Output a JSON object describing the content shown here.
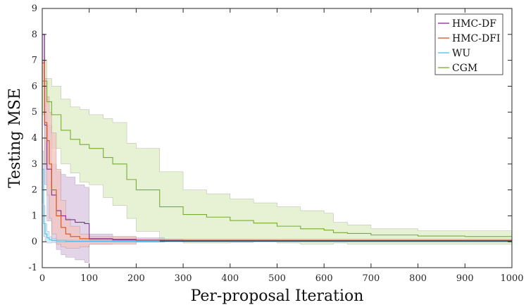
{
  "chart_data": {
    "type": "line",
    "title": "",
    "xlabel": "Per-proposal Iteration",
    "ylabel": "Testing MSE",
    "xlim": [
      0,
      1000
    ],
    "ylim": [
      -1,
      9
    ],
    "x_ticks": [
      0,
      100,
      200,
      300,
      400,
      500,
      600,
      700,
      800,
      900,
      1000
    ],
    "y_ticks": [
      -1,
      0,
      1,
      2,
      3,
      4,
      5,
      6,
      7,
      8,
      9
    ],
    "grid": false,
    "legend_position": "top-right",
    "series": [
      {
        "name": "CGM",
        "color": "#77ac30",
        "band_color": "#dfeec6",
        "x": [
          0,
          10,
          20,
          40,
          60,
          80,
          100,
          130,
          150,
          180,
          200,
          250,
          300,
          350,
          400,
          450,
          500,
          550,
          600,
          620,
          650,
          700,
          800,
          900,
          1000
        ],
        "mean": [
          6.2,
          5.4,
          4.9,
          4.3,
          3.95,
          3.75,
          3.6,
          3.25,
          3.0,
          2.4,
          2.0,
          1.35,
          1.05,
          0.95,
          0.82,
          0.72,
          0.6,
          0.5,
          0.45,
          0.35,
          0.32,
          0.26,
          0.22,
          0.2,
          0.2
        ],
        "upper": [
          7.0,
          6.3,
          6.0,
          5.5,
          5.2,
          5.1,
          4.9,
          4.75,
          4.6,
          3.8,
          3.6,
          2.7,
          2.0,
          1.85,
          1.65,
          1.5,
          1.35,
          1.2,
          1.1,
          0.75,
          0.65,
          0.5,
          0.42,
          0.42,
          0.35
        ],
        "lower": [
          4.9,
          4.2,
          3.6,
          3.0,
          2.65,
          2.3,
          2.2,
          1.7,
          1.4,
          0.9,
          0.4,
          0.0,
          -0.05,
          -0.05,
          -0.03,
          0.0,
          -0.05,
          -0.1,
          -0.1,
          -0.05,
          -0.1,
          -0.1,
          -0.1,
          -0.1,
          -0.05
        ]
      },
      {
        "name": "HMC-DF",
        "color": "#7e2f8e",
        "band_color": "#d9c6e2",
        "x": [
          0,
          5,
          10,
          20,
          30,
          40,
          50,
          70,
          90,
          100,
          150,
          200,
          260,
          300,
          500,
          1000
        ],
        "mean": [
          8.0,
          4.5,
          2.8,
          1.8,
          1.2,
          1.0,
          0.85,
          0.75,
          0.7,
          0.12,
          0.07,
          0.06,
          0.05,
          0.04,
          0.03,
          0.03
        ],
        "upper": [
          8.0,
          6.0,
          4.5,
          3.0,
          2.7,
          2.6,
          2.5,
          2.2,
          2.1,
          0.3,
          0.2,
          0.15,
          0.1,
          0.08,
          0.06,
          0.05
        ],
        "lower": [
          6.5,
          2.2,
          0.8,
          0.0,
          -0.3,
          -0.5,
          -0.6,
          -0.7,
          -0.8,
          -0.1,
          -0.05,
          -0.02,
          0.0,
          0.0,
          0.0,
          0.0
        ]
      },
      {
        "name": "HMC-DFI",
        "color": "#d95319",
        "band_color": "#f2c4bf",
        "x": [
          0,
          5,
          10,
          15,
          20,
          30,
          40,
          50,
          60,
          80,
          100,
          200,
          1000
        ],
        "mean": [
          6.9,
          4.6,
          3.9,
          3.0,
          2.0,
          1.0,
          0.55,
          0.3,
          0.2,
          0.12,
          0.1,
          0.05,
          0.03
        ],
        "upper": [
          7.0,
          6.3,
          5.6,
          5.0,
          4.2,
          2.8,
          1.6,
          0.9,
          0.6,
          0.3,
          0.2,
          0.1,
          0.05
        ],
        "lower": [
          6.0,
          3.0,
          1.8,
          0.9,
          0.3,
          -0.1,
          -0.2,
          -0.25,
          -0.25,
          -0.2,
          -0.1,
          0.0,
          0.0
        ]
      },
      {
        "name": "WU",
        "color": "#4dbeee",
        "band_color": "#c6e8f5",
        "x": [
          0,
          3,
          6,
          10,
          15,
          20,
          30,
          50,
          100,
          1000
        ],
        "mean": [
          2.8,
          0.7,
          0.3,
          0.15,
          0.08,
          0.05,
          0.03,
          0.02,
          0.02,
          0.02
        ],
        "upper": [
          3.5,
          1.4,
          0.7,
          0.4,
          0.2,
          0.12,
          0.08,
          0.06,
          0.05,
          0.04
        ],
        "lower": [
          1.5,
          0.2,
          0.0,
          -0.05,
          -0.05,
          -0.03,
          -0.02,
          0.0,
          0.0,
          0.0
        ]
      }
    ],
    "legend_order": [
      "HMC-DF",
      "HMC-DFI",
      "WU",
      "CGM"
    ]
  }
}
